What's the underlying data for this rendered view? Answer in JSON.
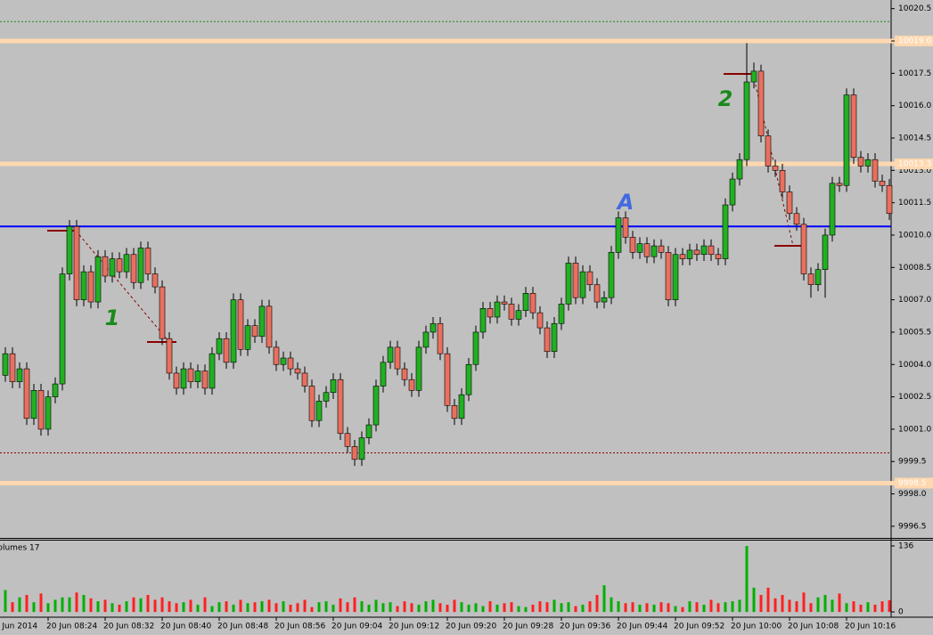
{
  "chart_data": [
    {
      "type": "candlestick",
      "open": [
        10003.5,
        10004.5,
        10003.2,
        10003.8,
        10001.5,
        10002.8,
        10001.0,
        10002.5,
        10003.1,
        10008.2,
        10010.4,
        10007.0,
        10008.3,
        10006.9,
        10009.0,
        10008.1,
        10008.9,
        10008.3,
        10009.1,
        10007.8,
        10009.4,
        10008.2,
        10007.6,
        10005.2,
        10003.6,
        10002.9,
        10003.8,
        10003.2,
        10003.7,
        10002.9,
        10004.5,
        10005.2,
        10004.1,
        10007.0,
        10004.7,
        10005.8,
        10005.3,
        10006.7,
        10004.8,
        10004.0,
        10004.3,
        10003.8,
        10003.6,
        10003.0,
        10001.4,
        10002.3,
        10002.7,
        10003.3,
        10000.8,
        10000.2,
        9999.6,
        10000.6,
        10001.2,
        10003.0,
        10004.1,
        10004.8,
        10003.8,
        10003.3,
        10002.8,
        10004.8,
        10005.5,
        10005.9,
        10004.5,
        10002.1,
        10001.5,
        10002.6,
        10004.0,
        10005.5,
        10006.6,
        10006.2,
        10006.9,
        10006.8,
        10006.1,
        10006.5,
        10007.3,
        10006.4,
        10005.7,
        10004.6,
        10005.9,
        10006.8,
        10008.7,
        10007.1,
        10008.3,
        10007.7,
        10006.9,
        10007.1,
        10009.2,
        10010.8,
        10009.9,
        10009.2,
        10009.6,
        10009.0,
        10009.5,
        10009.2,
        10007.0,
        10009.1,
        10008.9,
        10009.3,
        10009.1,
        10009.5,
        10009.1,
        10008.9,
        10011.4,
        10012.6,
        10013.5,
        10017.1,
        10017.6,
        10014.6,
        10013.2,
        10013.0,
        10012.0,
        10011.0,
        10010.5,
        10008.2,
        10007.7,
        10008.4,
        10010.0,
        10012.4,
        10012.3,
        10016.5,
        10013.6,
        10013.2,
        10013.5,
        10012.5,
        10012.3
      ],
      "high": [
        10004.8,
        10004.8,
        10004.1,
        10004.1,
        10003.1,
        10003.1,
        10002.8,
        10003.4,
        10008.5,
        10010.7,
        10010.7,
        10008.6,
        10008.6,
        10009.3,
        10009.3,
        10009.2,
        10009.2,
        10009.4,
        10009.4,
        10009.7,
        10009.7,
        10008.5,
        10007.9,
        10005.5,
        10003.9,
        10004.1,
        10004.1,
        10004.0,
        10004.0,
        10004.8,
        10005.5,
        10005.5,
        10007.3,
        10007.3,
        10006.1,
        10006.1,
        10007.0,
        10007.0,
        10005.1,
        10004.6,
        10004.6,
        10004.1,
        10003.9,
        10003.3,
        10002.6,
        10003.0,
        10003.6,
        10003.6,
        10001.1,
        10000.5,
        10000.9,
        10001.5,
        10003.3,
        10004.4,
        10005.1,
        10005.1,
        10004.1,
        10003.6,
        10005.1,
        10005.8,
        10006.2,
        10006.2,
        10004.8,
        10002.4,
        10002.9,
        10004.3,
        10005.8,
        10006.9,
        10006.9,
        10007.2,
        10007.2,
        10007.1,
        10006.8,
        10007.6,
        10007.6,
        10006.7,
        10006.0,
        10006.2,
        10007.1,
        10009.0,
        10009.0,
        10008.6,
        10008.6,
        10008.0,
        10007.4,
        10009.5,
        10011.1,
        10011.1,
        10010.2,
        10009.9,
        10009.9,
        10009.8,
        10009.8,
        10009.5,
        10009.4,
        10009.4,
        10009.6,
        10009.6,
        10009.8,
        10009.8,
        10009.4,
        10011.7,
        10012.9,
        10013.8,
        10018.9,
        10018.0,
        10017.9,
        10014.9,
        10013.5,
        10013.3,
        10012.3,
        10011.3,
        10010.8,
        10008.5,
        10008.7,
        10010.3,
        10012.7,
        10012.7,
        10016.8,
        10016.8,
        10013.9,
        10013.8,
        10013.8,
        10012.8,
        10012.6
      ],
      "low": [
        10003.2,
        10002.9,
        10002.9,
        10001.2,
        10001.2,
        10000.7,
        10000.7,
        10002.2,
        10002.8,
        10007.9,
        10006.7,
        10006.7,
        10006.6,
        10006.6,
        10007.8,
        10007.8,
        10008.0,
        10008.0,
        10007.5,
        10007.5,
        10007.9,
        10007.3,
        10004.9,
        10003.3,
        10002.6,
        10002.6,
        10002.9,
        10002.9,
        10002.6,
        10002.6,
        10004.2,
        10003.8,
        10003.8,
        10004.4,
        10004.4,
        10005.0,
        10005.0,
        10004.5,
        10003.7,
        10003.7,
        10003.5,
        10003.3,
        10002.7,
        10001.1,
        10001.1,
        10002.0,
        10002.4,
        10000.5,
        9999.9,
        9999.3,
        9999.3,
        10000.3,
        10000.9,
        10002.7,
        10003.8,
        10003.5,
        10003.0,
        10002.5,
        10002.5,
        10004.5,
        10005.2,
        10004.2,
        10001.8,
        10001.2,
        10001.2,
        10002.3,
        10003.7,
        10005.2,
        10005.9,
        10005.9,
        10006.5,
        10005.8,
        10005.8,
        10006.2,
        10006.1,
        10005.4,
        10004.3,
        10004.3,
        10005.6,
        10006.5,
        10006.8,
        10006.8,
        10007.4,
        10006.6,
        10006.6,
        10006.8,
        10008.9,
        10009.6,
        10008.9,
        10008.9,
        10008.7,
        10008.7,
        10008.9,
        10006.7,
        10006.7,
        10008.6,
        10008.6,
        10008.8,
        10008.8,
        10008.8,
        10008.6,
        10008.6,
        10011.1,
        10012.3,
        10013.2,
        10016.8,
        10014.3,
        10012.9,
        10012.7,
        10011.7,
        10010.7,
        10010.2,
        10007.9,
        10007.1,
        10007.4,
        10007.1,
        10009.7,
        10012.0,
        10012.0,
        10013.3,
        10012.9,
        10012.9,
        10012.2,
        10012.0,
        10010.7
      ],
      "close": [
        10004.5,
        10003.2,
        10003.8,
        10001.5,
        10002.8,
        10001.0,
        10002.5,
        10003.1,
        10008.2,
        10010.4,
        10007.0,
        10008.3,
        10006.9,
        10009.0,
        10008.1,
        10008.9,
        10008.3,
        10009.1,
        10007.8,
        10009.4,
        10008.2,
        10007.6,
        10005.2,
        10003.6,
        10002.9,
        10003.8,
        10003.2,
        10003.7,
        10002.9,
        10004.5,
        10005.2,
        10004.1,
        10007.0,
        10004.7,
        10005.8,
        10005.3,
        10006.7,
        10004.8,
        10004.0,
        10004.3,
        10003.8,
        10003.6,
        10003.0,
        10001.4,
        10002.3,
        10002.7,
        10003.3,
        10000.8,
        10000.2,
        9999.6,
        10000.6,
        10001.2,
        10003.0,
        10004.1,
        10004.8,
        10003.8,
        10003.3,
        10002.8,
        10004.8,
        10005.5,
        10005.9,
        10004.5,
        10002.1,
        10001.5,
        10002.6,
        10004.0,
        10005.5,
        10006.6,
        10006.2,
        10006.9,
        10006.8,
        10006.1,
        10006.5,
        10007.3,
        10006.4,
        10005.7,
        10004.6,
        10005.9,
        10006.8,
        10008.7,
        10007.1,
        10008.3,
        10007.7,
        10006.9,
        10007.1,
        10009.2,
        10010.8,
        10009.9,
        10009.2,
        10009.6,
        10009.0,
        10009.5,
        10009.2,
        10007.0,
        10009.1,
        10008.9,
        10009.3,
        10009.1,
        10009.5,
        10009.1,
        10008.9,
        10011.4,
        10012.6,
        10013.5,
        10017.1,
        10017.6,
        10014.6,
        10013.2,
        10013.0,
        10012.0,
        10011.0,
        10010.5,
        10008.2,
        10007.7,
        10008.4,
        10010.0,
        10012.4,
        10012.3,
        10016.5,
        10013.6,
        10013.2,
        10013.5,
        10012.5,
        10012.3,
        10011.0
      ],
      "up_color": "#22b022",
      "down_color": "#e8705f",
      "xlim": [
        -0.75,
        123.875
      ],
      "xticks": [
        {
          "value": -2,
          "label": "20 Jun 2014"
        },
        {
          "value": 6,
          "label": "20 Jun 08:24"
        },
        {
          "value": 14,
          "label": "20 Jun 08:32"
        },
        {
          "value": 22,
          "label": "20 Jun 08:40"
        },
        {
          "value": 30,
          "label": "20 Jun 08:48"
        },
        {
          "value": 38,
          "label": "20 Jun 08:56"
        },
        {
          "value": 46,
          "label": "20 Jun 09:04"
        },
        {
          "value": 54,
          "label": "20 Jun 09:12"
        },
        {
          "value": 62,
          "label": "20 Jun 09:20"
        },
        {
          "value": 70,
          "label": "20 Jun 09:28"
        },
        {
          "value": 78,
          "label": "20 Jun 09:36"
        },
        {
          "value": 86,
          "label": "20 Jun 09:44"
        },
        {
          "value": 94,
          "label": "20 Jun 09:52"
        },
        {
          "value": 102,
          "label": "20 Jun 10:00"
        },
        {
          "value": 110,
          "label": "20 Jun 10:08"
        },
        {
          "value": 118,
          "label": "20 Jun 10:16"
        }
      ],
      "ylim": [
        9996.0,
        10020.9
      ],
      "yticks": [
        10020.5,
        {
          "value": 10019,
          "label": "10019.0"
        },
        10017.5,
        {
          "value": 10016,
          "label": "10016.0"
        },
        10014.5,
        {
          "value": 10013,
          "label": "10013.0"
        },
        10011.5,
        {
          "value": 10010,
          "label": "10010.0"
        },
        10008.5,
        {
          "value": 10007,
          "label": "10007.0"
        },
        10005.5,
        {
          "value": 10004,
          "label": "10004.0"
        },
        10002.5,
        {
          "value": 10001,
          "label": "10001.0"
        },
        9999.5,
        {
          "value": 9998,
          "label": "9998.0"
        },
        9996.5
      ],
      "levels": [
        {
          "value": 10019.9,
          "color": "#1a8a1a",
          "style": "dotted"
        },
        {
          "value": 10019,
          "color": "#ffd8b0",
          "style": "thick",
          "label": "10019.0"
        },
        {
          "value": 10013.3,
          "color": "#ffd8b0",
          "style": "thick",
          "label": "10013.3"
        },
        {
          "value": 10010.4,
          "color": "#0000ff",
          "style": "solid"
        },
        {
          "value": 9999.9,
          "color": "#8b0000",
          "style": "dotted"
        },
        {
          "value": 9998.5,
          "color": "#ffd8b0",
          "style": "thick",
          "label": "9998.5"
        }
      ],
      "annotations": [
        {
          "text": "1",
          "color": "#1a8a1a"
        },
        {
          "text": "2",
          "color": "#1a8a1a"
        },
        {
          "text": "A",
          "color": "#4169e1"
        }
      ]
    },
    {
      "type": "bar",
      "title": "Volumes 17",
      "values": [
        45,
        20,
        30,
        35,
        20,
        38,
        18,
        25,
        30,
        30,
        40,
        35,
        28,
        22,
        25,
        18,
        15,
        22,
        30,
        28,
        35,
        25,
        30,
        22,
        18,
        20,
        25,
        15,
        30,
        12,
        20,
        22,
        15,
        25,
        18,
        20,
        22,
        25,
        18,
        22,
        15,
        18,
        25,
        10,
        20,
        22,
        15,
        28,
        20,
        30,
        22,
        15,
        25,
        18,
        20,
        12,
        22,
        18,
        15,
        22,
        25,
        18,
        15,
        25,
        20,
        15,
        18,
        12,
        22,
        15,
        18,
        20,
        12,
        10,
        15,
        22,
        20,
        25,
        18,
        20,
        12,
        15,
        22,
        35,
        55,
        30,
        22,
        18,
        20,
        15,
        18,
        15,
        20,
        18,
        12,
        10,
        22,
        20,
        15,
        25,
        18,
        20,
        22,
        25,
        136,
        50,
        35,
        50,
        28,
        35,
        25,
        22,
        40,
        18,
        30,
        35,
        25,
        38,
        18,
        22,
        15,
        20,
        15,
        22,
        24
      ],
      "ylim": [
        -9,
        147
      ],
      "yticks": [
        136,
        0
      ]
    }
  ]
}
